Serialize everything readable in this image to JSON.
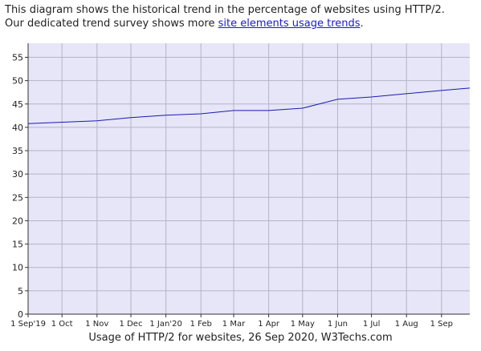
{
  "intro": {
    "line1": "This diagram shows the historical trend in the percentage of websites using HTTP/2.",
    "line2_prefix": "Our dedicated trend survey shows more ",
    "link_text": "site elements usage trends",
    "line2_suffix": "."
  },
  "caption": "Usage of HTTP/2 for websites, 26 Sep 2020, W3Techs.com",
  "colors": {
    "plot_bg": "#e6e6f8",
    "grid": "#b4b4c8",
    "line": "#1a1ab0",
    "axis": "#333333"
  },
  "chart_data": {
    "type": "line",
    "title": "",
    "xlabel": "",
    "ylabel": "",
    "ylim": [
      0,
      58
    ],
    "yticks": [
      0,
      5,
      10,
      15,
      20,
      25,
      30,
      35,
      40,
      45,
      50,
      55
    ],
    "xlim": [
      "2019-09-01",
      "2020-09-26"
    ],
    "xticks": [
      {
        "date": "2019-09-01",
        "label": "1 Sep'19"
      },
      {
        "date": "2019-10-01",
        "label": "1 Oct"
      },
      {
        "date": "2019-11-01",
        "label": "1 Nov"
      },
      {
        "date": "2019-12-01",
        "label": "1 Dec"
      },
      {
        "date": "2020-01-01",
        "label": "1 Jan'20"
      },
      {
        "date": "2020-02-01",
        "label": "1 Feb"
      },
      {
        "date": "2020-03-01",
        "label": "1 Mar"
      },
      {
        "date": "2020-04-01",
        "label": "1 Apr"
      },
      {
        "date": "2020-05-01",
        "label": "1 May"
      },
      {
        "date": "2020-06-01",
        "label": "1 Jun"
      },
      {
        "date": "2020-07-01",
        "label": "1 Jul"
      },
      {
        "date": "2020-08-01",
        "label": "1 Aug"
      },
      {
        "date": "2020-09-01",
        "label": "1 Sep"
      }
    ],
    "grid": true,
    "series": [
      {
        "x": [
          "2019-09-01",
          "2019-10-01",
          "2019-11-01",
          "2019-12-01",
          "2020-01-01",
          "2020-02-01",
          "2020-03-01",
          "2020-04-01",
          "2020-05-01",
          "2020-06-01",
          "2020-07-01",
          "2020-08-01",
          "2020-09-01",
          "2020-09-26"
        ],
        "y": [
          40.8,
          41.1,
          41.4,
          42.1,
          42.6,
          42.9,
          43.6,
          43.6,
          44.1,
          46.0,
          46.5,
          47.2,
          47.9,
          48.4
        ]
      }
    ]
  }
}
